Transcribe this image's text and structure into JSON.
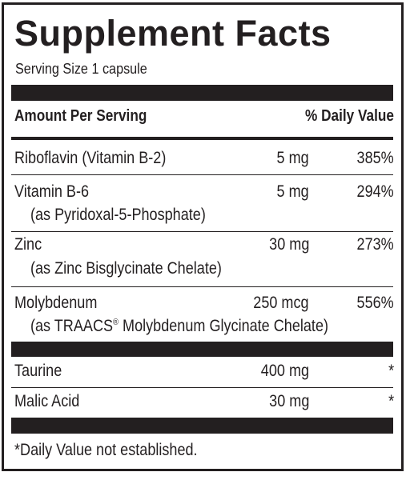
{
  "label": {
    "title": "Supplement Facts",
    "serving_size": "Serving Size 1 capsule",
    "header": {
      "amount_per_serving": "Amount Per Serving",
      "daily_value": "% Daily Value"
    },
    "rows": [
      {
        "name": "Riboflavin (Vitamin B-2)",
        "amount": "5 mg",
        "dv": "385%"
      },
      {
        "name": "Vitamin B-6",
        "detail": "(as Pyridoxal-5-Phosphate)",
        "amount": "5 mg",
        "dv": "294%"
      },
      {
        "name": "Zinc",
        "detail": "(as Zinc Bisglycinate Chelate)",
        "amount": "30 mg",
        "dv": "273%"
      },
      {
        "name": "Molybdenum",
        "detail_prefix": "(as TRAACS",
        "detail_mark": "®",
        "detail_suffix": " Molybdenum Glycinate Chelate)",
        "amount": "250 mcg",
        "dv": "556%"
      },
      {
        "name": "Taurine",
        "amount": "400 mg",
        "dv": "*"
      },
      {
        "name": "Malic Acid",
        "amount": "30 mg",
        "dv": "*"
      }
    ],
    "footnote": "*Daily Value not established.",
    "colors": {
      "ink": "#231f20",
      "background": "#ffffff"
    }
  }
}
